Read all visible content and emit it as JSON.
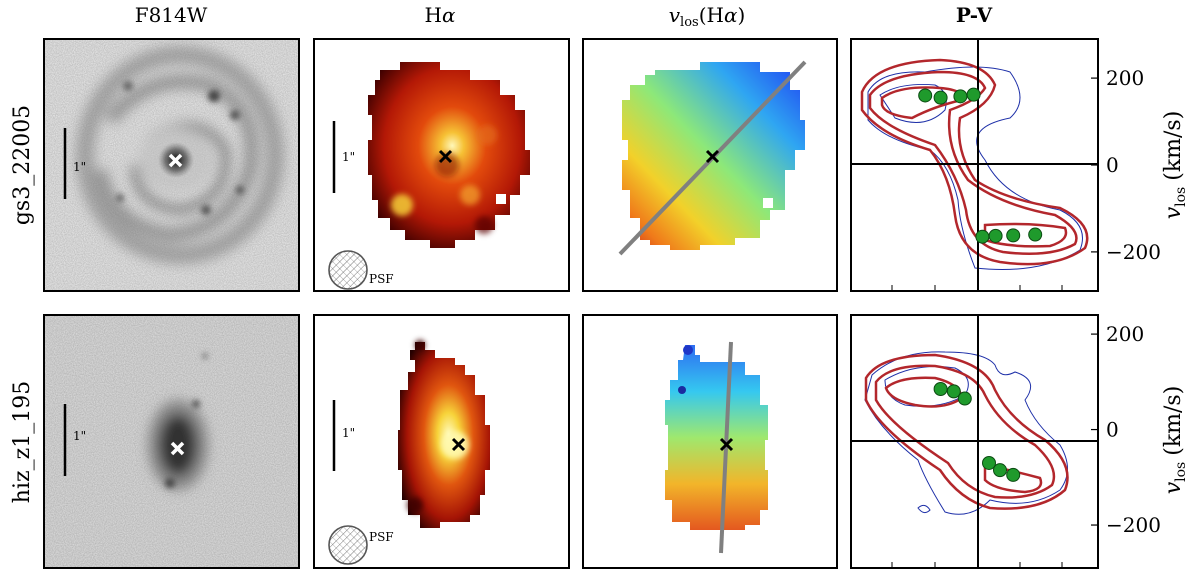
{
  "columns": {
    "c1": "F814W",
    "c2_base": "H",
    "c2_greek": "α",
    "c3_v": "v",
    "c3_sub": "los",
    "c3_paren": "(H",
    "c3_greek": "α",
    "c3_close": ")",
    "c4": "P-V"
  },
  "rows": [
    {
      "id": "gs3_22005",
      "scale_label": "1\"",
      "psf_label": "PSF"
    },
    {
      "id": "hiz_z1_195",
      "scale_label": "1\"",
      "psf_label": "PSF"
    }
  ],
  "axis": {
    "ylabel_v": "v",
    "ylabel_sub": "los",
    "ylabel_unit": "(km/s)",
    "ticks": [
      "200",
      "0",
      "−200"
    ]
  },
  "chart_data": [
    {
      "type": "scatter",
      "title": "P-V",
      "galaxy": "gs3_22005",
      "ylabel": "v_los (km/s)",
      "ylim": [
        -290,
        290
      ],
      "yticks": [
        200,
        0,
        -200
      ],
      "series": [
        {
          "x": [
            -1.2,
            -0.85,
            -0.4,
            -0.1,
            0.1,
            0.4,
            0.8,
            1.3
          ],
          "y": [
            160,
            155,
            158,
            162,
            -165,
            -163,
            -162,
            -160
          ]
        }
      ]
    },
    {
      "type": "scatter",
      "title": "P-V",
      "galaxy": "hiz_z1_195",
      "ylabel": "v_los (km/s)",
      "ylim": [
        -290,
        240
      ],
      "yticks": [
        200,
        0,
        -200
      ],
      "series": [
        {
          "x": [
            -0.85,
            -0.55,
            -0.3,
            0.25,
            0.5,
            0.8
          ],
          "y": [
            85,
            80,
            65,
            -70,
            -85,
            -95
          ]
        }
      ]
    }
  ]
}
